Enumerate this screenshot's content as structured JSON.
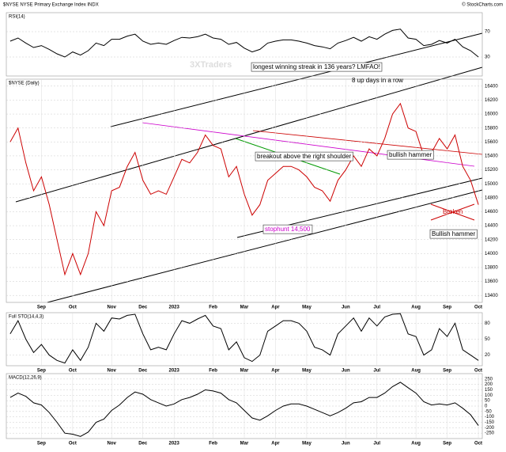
{
  "header": {
    "title": "$NYSE NYSE Primary Exchange Index INDX",
    "source": "© StockCharts.com",
    "watermark": "3XTraders"
  },
  "chart_data": [
    {
      "type": "line",
      "title": "RSI(14)",
      "color": "#000000",
      "ylim": [
        0,
        100
      ],
      "yticks": [
        30,
        70
      ],
      "values": [
        55,
        60,
        52,
        45,
        48,
        42,
        35,
        30,
        38,
        33,
        40,
        52,
        48,
        58,
        58,
        63,
        66,
        55,
        50,
        52,
        50,
        56,
        61,
        60,
        62,
        66,
        60,
        58,
        50,
        53,
        44,
        38,
        42,
        52,
        55,
        57,
        57,
        55,
        52,
        48,
        46,
        43,
        52,
        56,
        61,
        55,
        62,
        58,
        66,
        72,
        74,
        60,
        58,
        48,
        50,
        56,
        52,
        58,
        46,
        40,
        30
      ]
    },
    {
      "type": "line",
      "title": "$NYSE (Daily)",
      "color": "#cc0000",
      "grid": true,
      "ylim": [
        13300,
        16500
      ],
      "yticks": [
        13400,
        13600,
        13800,
        14000,
        14200,
        14400,
        14600,
        14800,
        15000,
        15200,
        15400,
        15600,
        15800,
        16000,
        16200,
        16400
      ],
      "categories": [
        null,
        null,
        null,
        null,
        "Sep",
        null,
        null,
        null,
        "Oct",
        null,
        null,
        null,
        null,
        "Nov",
        null,
        null,
        null,
        "Dec",
        null,
        null,
        null,
        "2023",
        null,
        null,
        null,
        null,
        "Feb",
        null,
        null,
        null,
        "Mar",
        null,
        null,
        null,
        "Apr",
        null,
        null,
        null,
        "May",
        null,
        null,
        null,
        null,
        "Jun",
        null,
        null,
        null,
        "Jul",
        null,
        null,
        null,
        null,
        "Aug",
        null,
        null,
        null,
        "Sep",
        null,
        null,
        null,
        "Oct"
      ],
      "values": [
        15600,
        15800,
        15300,
        14900,
        15100,
        14700,
        14200,
        13700,
        14000,
        13700,
        14000,
        14600,
        14400,
        14900,
        14950,
        15250,
        15450,
        15050,
        14850,
        14900,
        14850,
        15100,
        15350,
        15300,
        15450,
        15700,
        15550,
        15500,
        15100,
        15250,
        14850,
        14550,
        14700,
        15050,
        15150,
        15250,
        15250,
        15200,
        15100,
        14950,
        14900,
        14750,
        15050,
        15200,
        15400,
        15250,
        15500,
        15400,
        15650,
        16000,
        16150,
        15800,
        15750,
        15400,
        15450,
        15650,
        15500,
        15700,
        15250,
        15050,
        14700
      ],
      "annotations": [
        {
          "text": "longest winning streak in 136 years? LMFAO!",
          "color": "#000000"
        },
        {
          "text": "8 up days in a row",
          "color": "#000000"
        },
        {
          "text": "breakout above the right shoulder",
          "color": "#000000"
        },
        {
          "text": "bullish hammer",
          "color": "#000000"
        },
        {
          "text": "stophunt 14,500",
          "color": "#cc00cc"
        },
        {
          "text": "Broken",
          "color": "#cc0000"
        },
        {
          "text": "Bullish hammer",
          "color": "#000000"
        }
      ]
    },
    {
      "type": "line",
      "title": "Full STO(14,4,3)",
      "color": "#000000",
      "ylim": [
        0,
        100
      ],
      "yticks": [
        20,
        50,
        80
      ],
      "categories": [
        null,
        null,
        null,
        null,
        "Sep",
        null,
        null,
        null,
        "Oct",
        null,
        null,
        null,
        null,
        "Nov",
        null,
        null,
        null,
        "Dec",
        null,
        null,
        null,
        "2023",
        null,
        null,
        null,
        null,
        "Feb",
        null,
        null,
        null,
        "Mar",
        null,
        null,
        null,
        "Apr",
        null,
        null,
        null,
        "May",
        null,
        null,
        null,
        null,
        "Jun",
        null,
        null,
        null,
        "Jul",
        null,
        null,
        null,
        null,
        "Aug",
        null,
        null,
        null,
        "Sep",
        null,
        null,
        null,
        "Oct"
      ],
      "values": [
        60,
        85,
        50,
        25,
        40,
        20,
        10,
        5,
        30,
        10,
        35,
        80,
        65,
        90,
        88,
        95,
        97,
        60,
        30,
        35,
        30,
        60,
        85,
        80,
        88,
        95,
        75,
        70,
        30,
        45,
        15,
        8,
        20,
        65,
        75,
        85,
        85,
        80,
        65,
        35,
        30,
        20,
        60,
        75,
        90,
        65,
        90,
        75,
        92,
        97,
        98,
        60,
        55,
        20,
        30,
        70,
        55,
        80,
        30,
        20,
        10
      ]
    },
    {
      "type": "line",
      "title": "MACD(12,26,9)",
      "color": "#000000",
      "ylim": [
        -300,
        300
      ],
      "yticks": [
        -250,
        -200,
        -150,
        -100,
        -50,
        0,
        50,
        100,
        150,
        200,
        250
      ],
      "categories": [
        null,
        null,
        null,
        null,
        "Sep",
        null,
        null,
        null,
        "Oct",
        null,
        null,
        null,
        null,
        "Nov",
        null,
        null,
        null,
        "Dec",
        null,
        null,
        null,
        "2023",
        null,
        null,
        null,
        null,
        "Feb",
        null,
        null,
        null,
        "Mar",
        null,
        null,
        null,
        "Apr",
        null,
        null,
        null,
        "May",
        null,
        null,
        null,
        null,
        "Jun",
        null,
        null,
        null,
        "Jul",
        null,
        null,
        null,
        null,
        "Aug",
        null,
        null,
        null,
        "Sep",
        null,
        null,
        null,
        "Oct"
      ],
      "values": [
        80,
        120,
        90,
        30,
        10,
        -60,
        -150,
        -250,
        -260,
        -280,
        -240,
        -150,
        -120,
        -40,
        10,
        80,
        130,
        110,
        60,
        30,
        0,
        20,
        60,
        80,
        110,
        150,
        140,
        120,
        60,
        30,
        -40,
        -110,
        -130,
        -90,
        -40,
        0,
        20,
        20,
        0,
        -30,
        -60,
        -90,
        -60,
        -20,
        30,
        40,
        80,
        80,
        120,
        180,
        220,
        170,
        120,
        40,
        10,
        20,
        10,
        30,
        -20,
        -80,
        -180
      ]
    }
  ]
}
